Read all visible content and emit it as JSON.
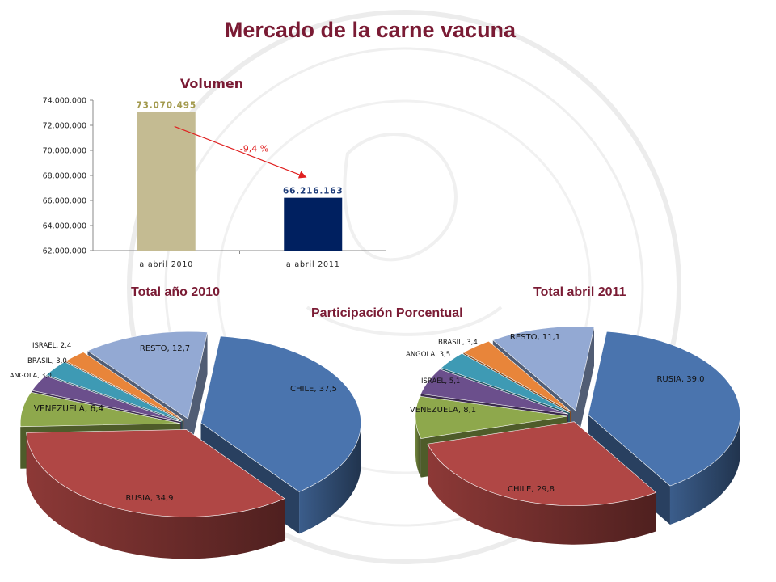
{
  "page": {
    "title": "Mercado de la carne vacuna",
    "subtitle_left": "Total año 2010",
    "subtitle_right": "Total abril 2011",
    "section": "Participación Porcentual"
  },
  "colors": {
    "title": "#7a1b34",
    "bar_2010": "#c4bb92",
    "bar_2011": "#002060",
    "arrow": "#e02020",
    "chile": "#4a74ae",
    "rusia": "#b04745",
    "venezuela": "#8ea84c",
    "angola": "#6b4f8c",
    "brasil": "#3e9ab4",
    "israel": "#e8853a",
    "resto": "#93a9d3"
  },
  "chart_data": [
    {
      "type": "bar",
      "title": "Volumen",
      "categories": [
        "a abril 2010",
        "a abril 2011"
      ],
      "values": [
        73070495,
        66216163
      ],
      "value_labels": [
        "73.070.495",
        "66.216.163"
      ],
      "ylim": [
        62000000,
        74000000
      ],
      "yticks": [
        62000000,
        64000000,
        66000000,
        68000000,
        70000000,
        72000000,
        74000000
      ],
      "ytick_labels": [
        "62.000.000",
        "64.000.000",
        "66.000.000",
        "68.000.000",
        "70.000.000",
        "72.000.000",
        "74.000.000"
      ],
      "annotation": "-9,4 %"
    },
    {
      "type": "pie",
      "title": "Total año 2010",
      "slices": [
        {
          "label": "CHILE",
          "value": 37.5,
          "text": "CHILE, 37,5",
          "color": "chile"
        },
        {
          "label": "RUSIA",
          "value": 34.9,
          "text": "RUSIA, 34,9",
          "color": "rusia"
        },
        {
          "label": "VENEZUELA",
          "value": 6.4,
          "text": "VENEZUELA, 6,4",
          "color": "venezuela"
        },
        {
          "label": "ANGOLA",
          "value": 3.0,
          "text": "ANGOLA, 3,0",
          "color": "angola"
        },
        {
          "label": "BRASIL",
          "value": 3.0,
          "text": "BRASIL, 3,0",
          "color": "brasil"
        },
        {
          "label": "ISRAEL",
          "value": 2.4,
          "text": "ISRAEL, 2,4",
          "color": "israel"
        },
        {
          "label": "RESTO",
          "value": 12.7,
          "text": "RESTO, 12,7",
          "color": "resto"
        }
      ]
    },
    {
      "type": "pie",
      "title": "Total abril 2011",
      "slices": [
        {
          "label": "RUSIA",
          "value": 39.0,
          "text": "RUSIA, 39,0",
          "color": "chile"
        },
        {
          "label": "CHILE",
          "value": 29.8,
          "text": "CHILE, 29,8",
          "color": "rusia"
        },
        {
          "label": "VENEZUELA",
          "value": 8.1,
          "text": "VENEZUELA, 8,1",
          "color": "venezuela"
        },
        {
          "label": "ISRAEL",
          "value": 5.1,
          "text": "ISRAEL, 5,1",
          "color": "angola"
        },
        {
          "label": "ANGOLA",
          "value": 3.5,
          "text": "ANGOLA, 3,5",
          "color": "brasil"
        },
        {
          "label": "BRASIL",
          "value": 3.4,
          "text": "BRASIL, 3,4",
          "color": "israel"
        },
        {
          "label": "RESTO",
          "value": 11.1,
          "text": "RESTO, 11,1",
          "color": "resto"
        }
      ]
    }
  ]
}
